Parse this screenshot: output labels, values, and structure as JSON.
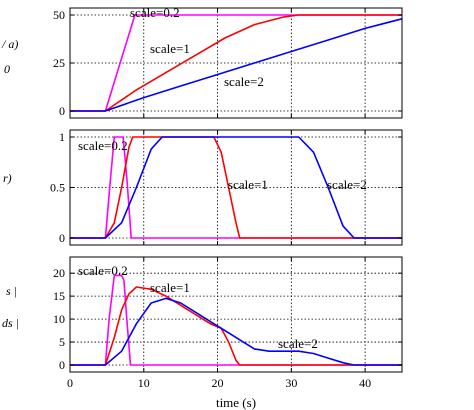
{
  "chart_data": [
    {
      "type": "line",
      "partial_ylabel": "/ a)",
      "partial_ylabel_extra": "0",
      "ylim": [
        0,
        50
      ],
      "yticks": [
        0,
        25,
        50
      ],
      "xlim": [
        0,
        45
      ],
      "grid": true,
      "series": [
        {
          "name": "scale=0.2",
          "color": "#ff00ff",
          "x": [
            0,
            4.8,
            8.8,
            45
          ],
          "y": [
            0,
            0,
            50,
            50
          ]
        },
        {
          "name": "scale=1",
          "color": "#ff0000",
          "x": [
            0,
            4.8,
            9,
            13,
            17,
            21,
            25,
            29,
            31,
            45
          ],
          "y": [
            0,
            0,
            11,
            20,
            29,
            38,
            45,
            49,
            50,
            50
          ]
        },
        {
          "name": "scale=2",
          "color": "#0000ff",
          "x": [
            0,
            4.8,
            10,
            15,
            20,
            25,
            30,
            35,
            40,
            45
          ],
          "y": [
            0,
            0,
            7,
            13,
            19,
            25,
            31,
            37,
            43,
            48
          ]
        }
      ]
    },
    {
      "type": "line",
      "partial_ylabel": "r)",
      "ylim": [
        0,
        1
      ],
      "yticks": [
        0,
        0.5,
        1
      ],
      "xlim": [
        0,
        45
      ],
      "grid": true,
      "series": [
        {
          "name": "scale=0.2",
          "color": "#ff00ff",
          "x": [
            0,
            4.8,
            5.5,
            6,
            7.2,
            7.7,
            8.3,
            45
          ],
          "y": [
            0,
            0,
            0.6,
            1,
            1,
            0.6,
            0,
            0
          ]
        },
        {
          "name": "scale=1",
          "color": "#ff0000",
          "x": [
            0,
            4.8,
            6,
            7,
            8,
            8.5,
            19.5,
            20.5,
            21.5,
            22.5,
            23,
            45
          ],
          "y": [
            0,
            0,
            0.15,
            0.5,
            0.9,
            1,
            1,
            0.85,
            0.5,
            0.15,
            0,
            0
          ]
        },
        {
          "name": "scale=2",
          "color": "#0000ff",
          "x": [
            0,
            4.8,
            7,
            9,
            11,
            12.5,
            31,
            33,
            35,
            37,
            38.5,
            45
          ],
          "y": [
            0,
            0,
            0.15,
            0.5,
            0.88,
            1,
            1,
            0.85,
            0.5,
            0.12,
            0,
            0
          ]
        }
      ]
    },
    {
      "type": "line",
      "partial_ylabel": "s |",
      "partial_ylabel_2": "ds |",
      "ylim": [
        0,
        22
      ],
      "yticks": [
        0,
        5,
        10,
        15,
        20
      ],
      "xlim": [
        0,
        45
      ],
      "xticks": [
        0,
        10,
        20,
        30,
        40
      ],
      "xlabel": "time (s)",
      "grid": true,
      "series": [
        {
          "name": "scale=0.2",
          "color": "#ff00ff",
          "x": [
            0,
            4.8,
            5.3,
            6,
            7,
            7.3,
            7.7,
            8.2,
            45
          ],
          "y": [
            0,
            0,
            10,
            19.5,
            19.5,
            18.5,
            10,
            0,
            0
          ]
        },
        {
          "name": "scale=1",
          "color": "#ff0000",
          "x": [
            0,
            4.8,
            6,
            7,
            8,
            9,
            11,
            13,
            15,
            17,
            19,
            20.5,
            21.5,
            22.5,
            23,
            45
          ],
          "y": [
            0,
            0,
            6,
            12,
            15.5,
            17,
            16.5,
            15,
            13,
            11,
            9,
            8,
            5,
            1,
            0,
            0
          ]
        },
        {
          "name": "scale=2",
          "color": "#0000ff",
          "x": [
            0,
            4.8,
            7,
            9,
            11,
            13,
            15,
            17,
            19,
            21,
            23,
            25,
            27,
            31,
            33,
            35,
            37,
            38.5,
            45
          ],
          "y": [
            0,
            0,
            3,
            9,
            13.5,
            14.5,
            13.5,
            11.5,
            9.5,
            7.5,
            5.5,
            3.5,
            3,
            3,
            2.5,
            1.5,
            0.5,
            0,
            0
          ]
        }
      ]
    }
  ]
}
